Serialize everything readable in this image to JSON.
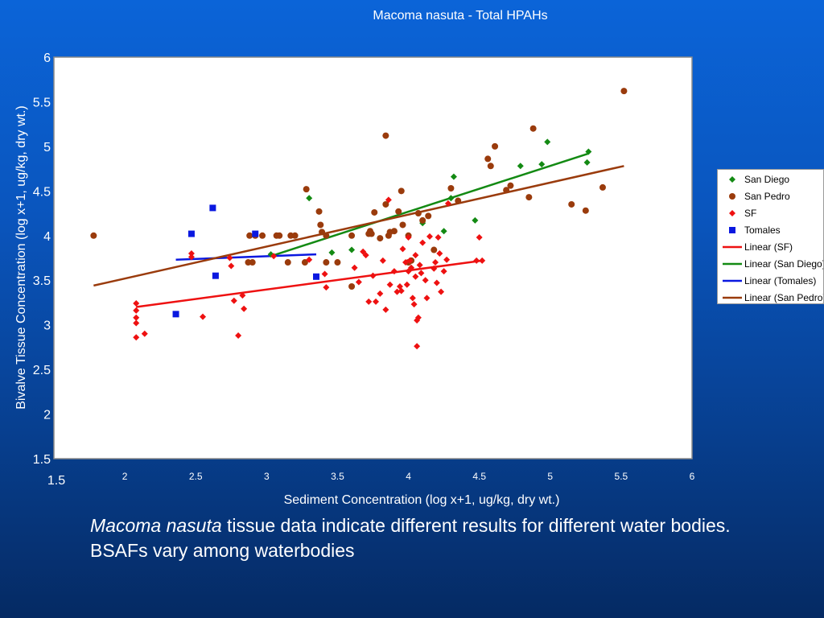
{
  "caption": {
    "italic": "Macoma nasuta",
    "text": " tissue data indicate different results for different water bodies. BSAFs vary among waterbodies"
  },
  "legend": {
    "items": [
      {
        "label": "San Diego",
        "symbol": "diamond",
        "color": "#138a13"
      },
      {
        "label": "San Pedro",
        "symbol": "circle",
        "color": "#9a3b0c"
      },
      {
        "label": "SF",
        "symbol": "diamond",
        "color": "#ee1111"
      },
      {
        "label": "Tomales",
        "symbol": "square",
        "color": "#0a18e0"
      },
      {
        "label": "Linear (SF)",
        "symbol": "line",
        "color": "#ee1111"
      },
      {
        "label": "Linear (San Diego)",
        "symbol": "line",
        "color": "#138a13"
      },
      {
        "label": "Linear (Tomales)",
        "symbol": "line",
        "color": "#0a18e0"
      },
      {
        "label": "Linear (San Pedro)",
        "symbol": "line",
        "color": "#9a3b0c"
      }
    ]
  },
  "chart_data": {
    "type": "scatter",
    "title": "Macoma nasuta - Total HPAHs",
    "xlabel": "Sediment Concentration (log x+1, ug/kg, dry wt.)",
    "ylabel": "Bivalve Tissue Concentration (log x+1, ug/kg, dry wt.)",
    "xlim": [
      1.5,
      6
    ],
    "ylim": [
      1.5,
      6
    ],
    "x_ticks": [
      "1.5",
      "2",
      "2.5",
      "3",
      "3.5",
      "4",
      "4.5",
      "5",
      "5.5",
      "6"
    ],
    "y_ticks": [
      "1.5",
      "2",
      "2.5",
      "3",
      "3.5",
      "4",
      "4.5",
      "5",
      "5.5",
      "6"
    ],
    "grid": false,
    "legend_position": "right",
    "series": [
      {
        "name": "San Diego",
        "marker": "diamond",
        "color": "#138a13",
        "points": [
          [
            3.03,
            3.79
          ],
          [
            3.3,
            4.42
          ],
          [
            3.46,
            3.81
          ],
          [
            3.6,
            3.84
          ],
          [
            4.1,
            4.14
          ],
          [
            4.25,
            4.05
          ],
          [
            4.3,
            4.42
          ],
          [
            4.32,
            4.66
          ],
          [
            4.47,
            4.17
          ],
          [
            4.79,
            4.78
          ],
          [
            4.94,
            4.8
          ],
          [
            4.98,
            5.05
          ],
          [
            5.26,
            4.82
          ],
          [
            5.27,
            4.94
          ]
        ]
      },
      {
        "name": "San Pedro",
        "marker": "circle",
        "color": "#9a3b0c",
        "points": [
          [
            1.78,
            4.0
          ],
          [
            2.88,
            4.0
          ],
          [
            2.92,
            4.0
          ],
          [
            2.97,
            4.0
          ],
          [
            3.07,
            4.0
          ],
          [
            3.09,
            4.0
          ],
          [
            3.17,
            4.0
          ],
          [
            3.2,
            4.0
          ],
          [
            2.87,
            3.7
          ],
          [
            2.9,
            3.7
          ],
          [
            3.15,
            3.7
          ],
          [
            3.27,
            3.7
          ],
          [
            3.42,
            3.7
          ],
          [
            3.5,
            3.7
          ],
          [
            3.28,
            4.52
          ],
          [
            3.37,
            4.27
          ],
          [
            3.38,
            4.12
          ],
          [
            3.39,
            4.04
          ],
          [
            3.42,
            4.0
          ],
          [
            3.6,
            4.0
          ],
          [
            3.6,
            3.43
          ],
          [
            3.72,
            4.02
          ],
          [
            3.73,
            4.05
          ],
          [
            3.74,
            4.02
          ],
          [
            3.76,
            4.26
          ],
          [
            3.8,
            3.97
          ],
          [
            3.84,
            4.35
          ],
          [
            3.84,
            5.12
          ],
          [
            3.86,
            4.0
          ],
          [
            3.87,
            4.04
          ],
          [
            3.9,
            4.05
          ],
          [
            3.93,
            4.27
          ],
          [
            3.95,
            4.5
          ],
          [
            3.96,
            4.12
          ],
          [
            4.0,
            4.0
          ],
          [
            4.0,
            3.7
          ],
          [
            4.02,
            3.72
          ],
          [
            4.07,
            4.25
          ],
          [
            4.1,
            4.17
          ],
          [
            4.14,
            4.22
          ],
          [
            4.18,
            3.84
          ],
          [
            4.3,
            4.53
          ],
          [
            4.35,
            4.39
          ],
          [
            4.56,
            4.86
          ],
          [
            4.58,
            4.78
          ],
          [
            4.61,
            5.0
          ],
          [
            4.69,
            4.51
          ],
          [
            4.72,
            4.56
          ],
          [
            4.85,
            4.43
          ],
          [
            4.88,
            5.2
          ],
          [
            5.15,
            4.35
          ],
          [
            5.25,
            4.28
          ],
          [
            5.37,
            4.54
          ],
          [
            5.52,
            5.62
          ]
        ]
      },
      {
        "name": "SF",
        "marker": "diamond",
        "color": "#ee1111",
        "points": [
          [
            2.08,
            3.24
          ],
          [
            2.08,
            3.16
          ],
          [
            2.08,
            3.08
          ],
          [
            2.08,
            3.02
          ],
          [
            2.08,
            2.86
          ],
          [
            2.14,
            2.9
          ],
          [
            2.47,
            3.8
          ],
          [
            2.47,
            3.76
          ],
          [
            2.55,
            3.09
          ],
          [
            2.74,
            3.75
          ],
          [
            2.75,
            3.66
          ],
          [
            2.77,
            3.27
          ],
          [
            2.8,
            2.88
          ],
          [
            2.83,
            3.33
          ],
          [
            2.84,
            3.18
          ],
          [
            3.05,
            3.77
          ],
          [
            3.3,
            3.73
          ],
          [
            3.41,
            3.57
          ],
          [
            3.42,
            3.42
          ],
          [
            3.62,
            3.64
          ],
          [
            3.65,
            3.48
          ],
          [
            3.68,
            3.82
          ],
          [
            3.7,
            3.78
          ],
          [
            3.72,
            3.26
          ],
          [
            3.75,
            3.55
          ],
          [
            3.77,
            3.26
          ],
          [
            3.8,
            3.35
          ],
          [
            3.82,
            3.72
          ],
          [
            3.84,
            3.17
          ],
          [
            3.86,
            4.4
          ],
          [
            3.87,
            3.45
          ],
          [
            3.9,
            3.6
          ],
          [
            3.92,
            3.37
          ],
          [
            3.94,
            3.43
          ],
          [
            3.95,
            3.38
          ],
          [
            3.96,
            3.85
          ],
          [
            3.98,
            3.7
          ],
          [
            3.99,
            3.45
          ],
          [
            4.0,
            3.98
          ],
          [
            4.0,
            3.6
          ],
          [
            4.01,
            3.72
          ],
          [
            4.02,
            3.64
          ],
          [
            4.03,
            3.3
          ],
          [
            4.04,
            3.23
          ],
          [
            4.05,
            3.78
          ],
          [
            4.05,
            3.54
          ],
          [
            4.06,
            3.05
          ],
          [
            4.07,
            3.08
          ],
          [
            4.06,
            2.76
          ],
          [
            4.08,
            3.67
          ],
          [
            4.09,
            3.58
          ],
          [
            4.1,
            3.92
          ],
          [
            4.12,
            3.5
          ],
          [
            4.13,
            3.3
          ],
          [
            4.15,
            3.99
          ],
          [
            4.18,
            3.63
          ],
          [
            4.19,
            3.7
          ],
          [
            4.2,
            3.47
          ],
          [
            4.21,
            3.98
          ],
          [
            4.22,
            3.8
          ],
          [
            4.23,
            3.37
          ],
          [
            4.25,
            3.6
          ],
          [
            4.27,
            3.73
          ],
          [
            4.28,
            4.36
          ],
          [
            4.48,
            3.72
          ],
          [
            4.5,
            3.98
          ],
          [
            4.52,
            3.72
          ]
        ]
      },
      {
        "name": "Tomales",
        "marker": "square",
        "color": "#0a18e0",
        "points": [
          [
            2.36,
            3.12
          ],
          [
            2.47,
            4.02
          ],
          [
            2.62,
            4.31
          ],
          [
            2.64,
            3.55
          ],
          [
            2.92,
            4.02
          ],
          [
            3.35,
            3.54
          ]
        ]
      }
    ],
    "trendlines": [
      {
        "name": "Linear (SF)",
        "color": "#ee1111",
        "x": [
          2.08,
          4.52
        ],
        "y": [
          3.2,
          3.72
        ]
      },
      {
        "name": "Linear (San Diego)",
        "color": "#138a13",
        "x": [
          3.03,
          5.27
        ],
        "y": [
          3.77,
          4.92
        ]
      },
      {
        "name": "Linear (Tomales)",
        "color": "#0a18e0",
        "x": [
          2.36,
          3.35
        ],
        "y": [
          3.73,
          3.79
        ]
      },
      {
        "name": "Linear (San Pedro)",
        "color": "#9a3b0c",
        "x": [
          1.78,
          5.52
        ],
        "y": [
          3.44,
          4.78
        ]
      }
    ]
  }
}
